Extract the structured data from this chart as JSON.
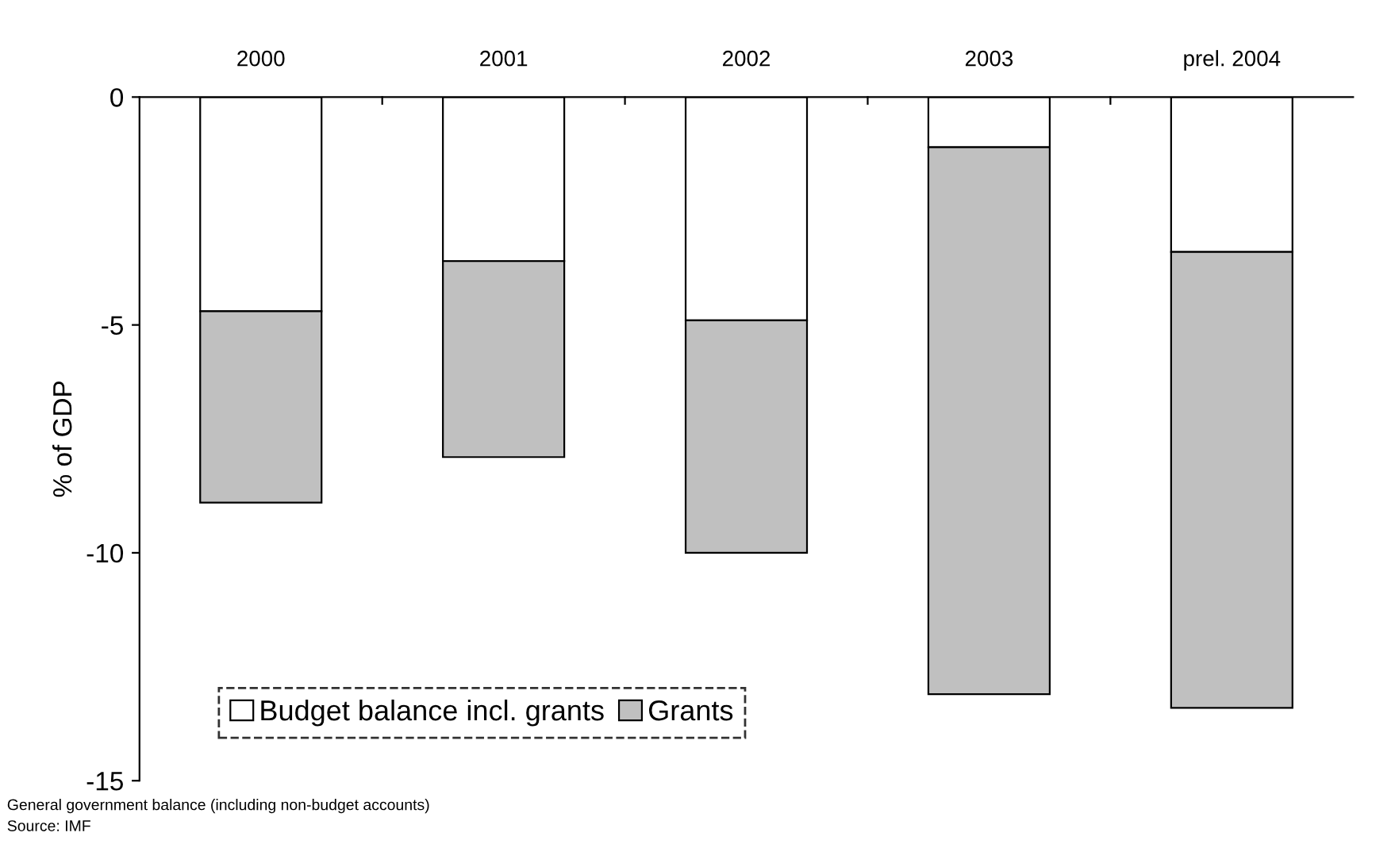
{
  "chart_data": {
    "type": "bar",
    "stacked": true,
    "ylabel": "% of GDP",
    "categories": [
      "2000",
      "2001",
      "2002",
      "2003",
      "prel. 2004"
    ],
    "series": [
      {
        "name": "Budget balance incl. grants",
        "color": "#ffffff",
        "values": [
          -4.7,
          -3.6,
          -4.9,
          -1.1,
          -3.4
        ]
      },
      {
        "name": "Grants",
        "color": "#c0c0c0",
        "values": [
          -4.2,
          -4.3,
          -5.1,
          -12.0,
          -10.0
        ]
      }
    ],
    "ylim": [
      -15,
      0
    ],
    "yticks": [
      -15,
      -10,
      -5,
      0
    ],
    "grid": false,
    "legend": "bottom left",
    "annotations": [
      "General government balance (including non-budget accounts)",
      "Source: IMF"
    ]
  }
}
